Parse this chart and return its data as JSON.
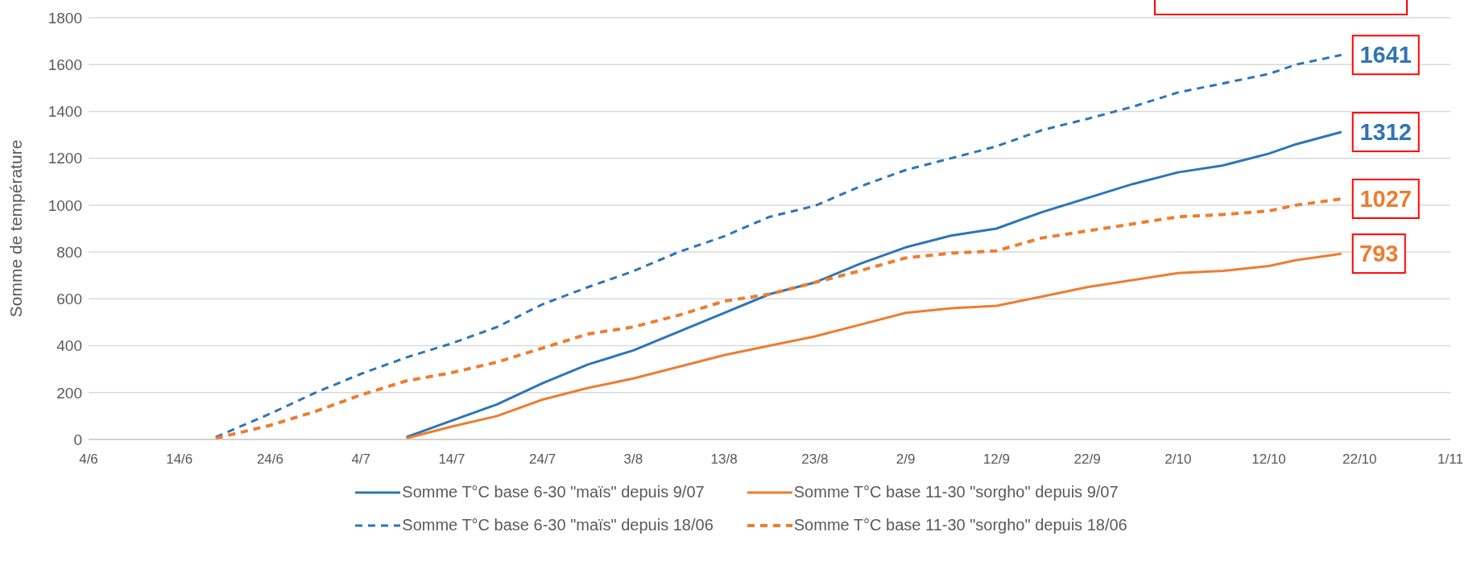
{
  "chart_data": {
    "type": "line",
    "ylabel": "Somme de température",
    "xlim": [
      "--06-04",
      "--11-01"
    ],
    "xticks": [
      {
        "value": "--06-04",
        "label": "4/6"
      },
      {
        "value": "--06-14",
        "label": "14/6"
      },
      {
        "value": "--06-24",
        "label": "24/6"
      },
      {
        "value": "--07-04",
        "label": "4/7"
      },
      {
        "value": "--07-14",
        "label": "14/7"
      },
      {
        "value": "--07-24",
        "label": "24/7"
      },
      {
        "value": "--08-03",
        "label": "3/8"
      },
      {
        "value": "--08-13",
        "label": "13/8"
      },
      {
        "value": "--08-23",
        "label": "23/8"
      },
      {
        "value": "--09-02",
        "label": "2/9"
      },
      {
        "value": "--09-12",
        "label": "12/9"
      },
      {
        "value": "--09-22",
        "label": "22/9"
      },
      {
        "value": "--10-02",
        "label": "2/10"
      },
      {
        "value": "--10-12",
        "label": "12/10"
      },
      {
        "value": "--10-22",
        "label": "22/10"
      },
      {
        "value": "--11-01",
        "label": "1/11"
      }
    ],
    "ylim": [
      0,
      1800
    ],
    "yticks": [
      0,
      200,
      400,
      600,
      800,
      1000,
      1200,
      1400,
      1600,
      1800
    ],
    "grid": "y",
    "legend": "bottom",
    "marker": "none",
    "series": [
      {
        "name": "Somme T°C base 6-30 \"maïs\" depuis 9/07",
        "color": "#2e75b6",
        "line_style": "solid",
        "x": [
          "--07-09",
          "--07-14",
          "--07-19",
          "--07-24",
          "--07-29",
          "--08-03",
          "--08-08",
          "--08-13",
          "--08-18",
          "--08-23",
          "--08-28",
          "--09-02",
          "--09-07",
          "--09-12",
          "--09-17",
          "--09-22",
          "--09-27",
          "--10-02",
          "--10-07",
          "--10-12",
          "--10-15",
          "--10-20"
        ],
        "values": [
          10,
          80,
          150,
          240,
          320,
          380,
          460,
          540,
          620,
          670,
          750,
          820,
          870,
          900,
          970,
          1030,
          1090,
          1140,
          1170,
          1220,
          1260,
          1312
        ]
      },
      {
        "name": "Somme T°C base 11-30 \"sorgho\" depuis 9/07",
        "color": "#ed7d31",
        "line_style": "solid",
        "x": [
          "--07-09",
          "--07-14",
          "--07-19",
          "--07-24",
          "--07-29",
          "--08-03",
          "--08-08",
          "--08-13",
          "--08-18",
          "--08-23",
          "--08-28",
          "--09-02",
          "--09-07",
          "--09-12",
          "--09-17",
          "--09-22",
          "--09-27",
          "--10-02",
          "--10-07",
          "--10-12",
          "--10-15",
          "--10-20"
        ],
        "values": [
          5,
          55,
          100,
          170,
          220,
          260,
          310,
          360,
          400,
          440,
          490,
          540,
          560,
          570,
          610,
          650,
          680,
          710,
          720,
          740,
          765,
          793
        ]
      },
      {
        "name": "Somme T°C base 6-30 \"maïs\" depuis 18/06",
        "color": "#2e75b6",
        "line_style": "dashed",
        "x": [
          "--06-18",
          "--06-24",
          "--06-29",
          "--07-04",
          "--07-09",
          "--07-14",
          "--07-19",
          "--07-24",
          "--07-29",
          "--08-03",
          "--08-08",
          "--08-13",
          "--08-18",
          "--08-23",
          "--08-28",
          "--09-02",
          "--09-07",
          "--09-12",
          "--09-17",
          "--09-22",
          "--09-27",
          "--10-02",
          "--10-07",
          "--10-12",
          "--10-15",
          "--10-20"
        ],
        "values": [
          10,
          110,
          200,
          280,
          350,
          410,
          480,
          577,
          650,
          718,
          800,
          867,
          950,
          997,
          1080,
          1150,
          1200,
          1251,
          1320,
          1368,
          1420,
          1481,
          1520,
          1560,
          1600,
          1641
        ]
      },
      {
        "name": "Somme T°C base 11-30 \"sorgho\" depuis 18/06",
        "color": "#ed7d31",
        "line_style": "dashed",
        "x": [
          "--06-18",
          "--06-24",
          "--06-29",
          "--07-04",
          "--07-09",
          "--07-14",
          "--07-19",
          "--07-24",
          "--07-29",
          "--08-03",
          "--08-08",
          "--08-13",
          "--08-18",
          "--08-23",
          "--08-28",
          "--09-02",
          "--09-07",
          "--09-12",
          "--09-17",
          "--09-22",
          "--09-27",
          "--10-02",
          "--10-07",
          "--10-12",
          "--10-15",
          "--10-20"
        ],
        "values": [
          5,
          60,
          120,
          190,
          250,
          285,
          330,
          390,
          450,
          480,
          530,
          590,
          620,
          670,
          720,
          775,
          795,
          805,
          860,
          890,
          920,
          950,
          960,
          975,
          1000,
          1027
        ]
      }
    ],
    "annotations": [
      {
        "text": "1641",
        "x": "--10-20",
        "y": 1641
      },
      {
        "text": "1312",
        "x": "--10-20",
        "y": 1312
      },
      {
        "text": "1027",
        "x": "--10-20",
        "y": 1027
      },
      {
        "text": "793",
        "x": "--10-20",
        "y": 793
      }
    ]
  }
}
